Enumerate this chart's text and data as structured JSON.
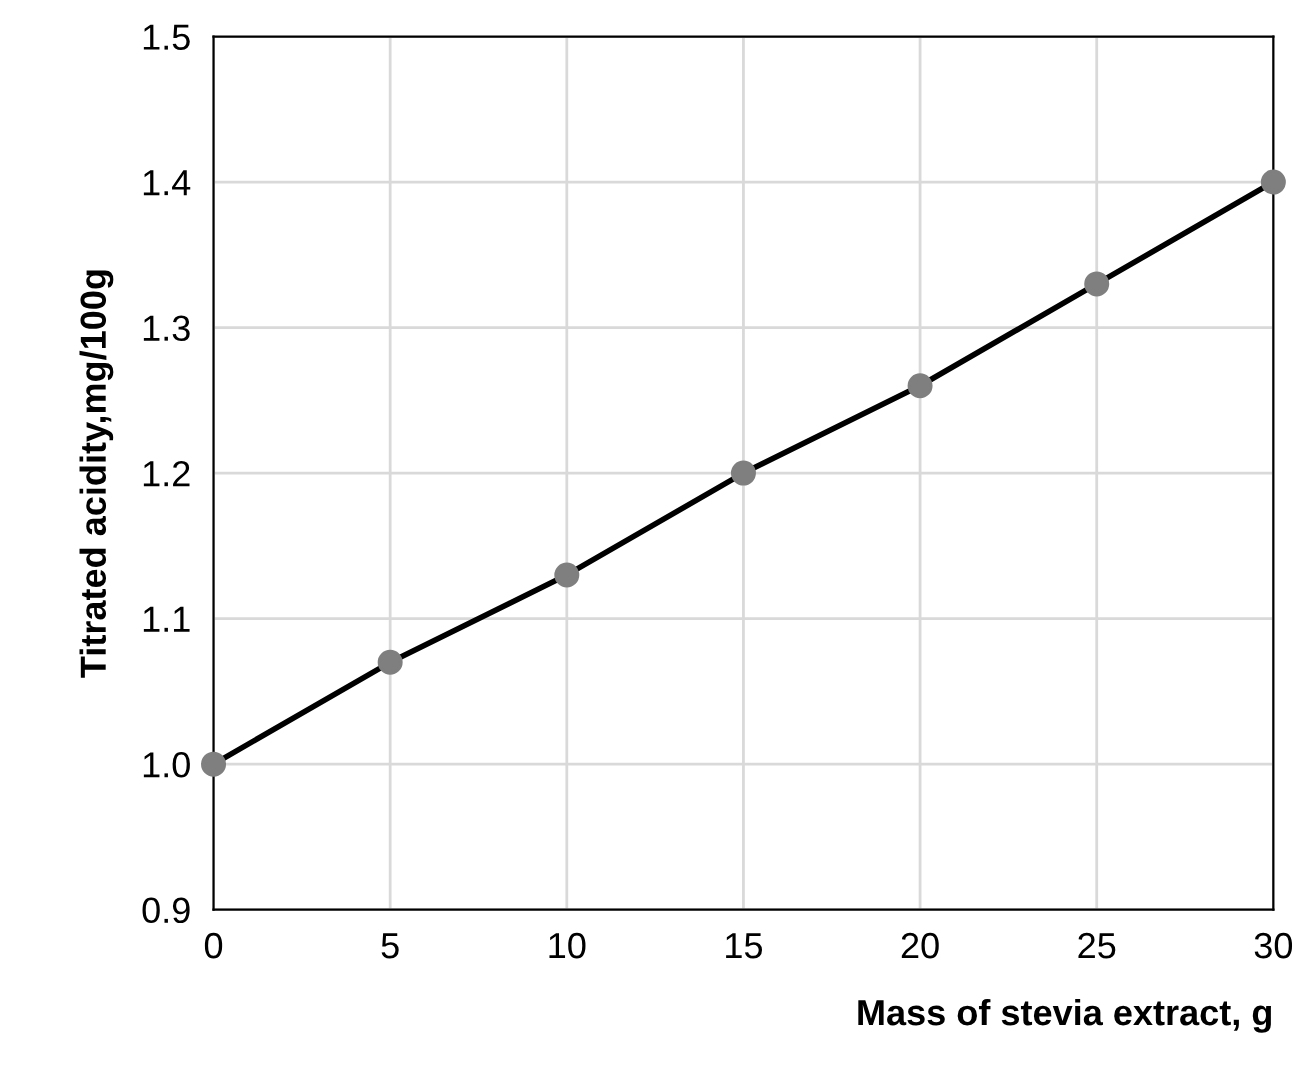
{
  "chart_data": {
    "type": "line",
    "xlabel": "Mass of stevia extract, g",
    "ylabel": "Titrated acidity,mg/100g",
    "x": [
      0,
      5,
      10,
      15,
      20,
      25,
      30
    ],
    "series": [
      {
        "color": "#000000",
        "colors": [
          "#7f7f7f",
          "#7f7f7f",
          "#7f7f7f",
          "#7f7f7f",
          "#7f7f7f",
          "#7f7f7f",
          "#7f7f7f"
        ],
        "values": [
          1.0,
          1.07,
          1.13,
          1.2,
          1.26,
          1.33,
          1.4
        ]
      }
    ],
    "xlim": [
      0,
      30
    ],
    "xticks": [
      0,
      5,
      10,
      15,
      20,
      25,
      30
    ],
    "ylim": [
      0.9,
      1.5
    ],
    "yticks": [
      0.9,
      {
        "value": 1.0,
        "label": "1.0"
      },
      1.1,
      1.2,
      1.3,
      1.4,
      1.5
    ],
    "grid": true,
    "marker": "circle",
    "line_style": "solid"
  }
}
